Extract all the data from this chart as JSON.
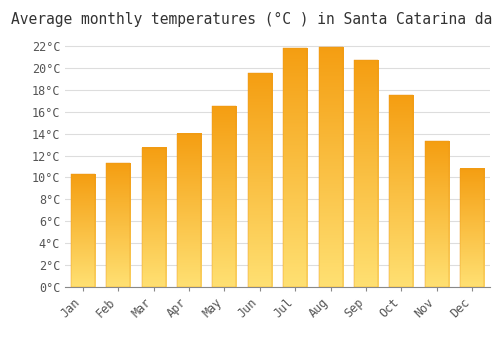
{
  "title": "Average monthly temperatures (°C ) in Santa Catarina da Serra",
  "months": [
    "Jan",
    "Feb",
    "Mar",
    "Apr",
    "May",
    "Jun",
    "Jul",
    "Aug",
    "Sep",
    "Oct",
    "Nov",
    "Dec"
  ],
  "values": [
    10.3,
    11.3,
    12.7,
    14.0,
    16.5,
    19.5,
    21.8,
    21.9,
    20.7,
    17.5,
    13.3,
    10.8
  ],
  "bar_color": "#F5A623",
  "bar_color_light": "#FFD97A",
  "background_color": "#FFFFFF",
  "grid_color": "#DDDDDD",
  "ylim": [
    0,
    23
  ],
  "ytick_step": 2,
  "title_fontsize": 10.5,
  "tick_fontsize": 8.5,
  "font_family": "monospace"
}
